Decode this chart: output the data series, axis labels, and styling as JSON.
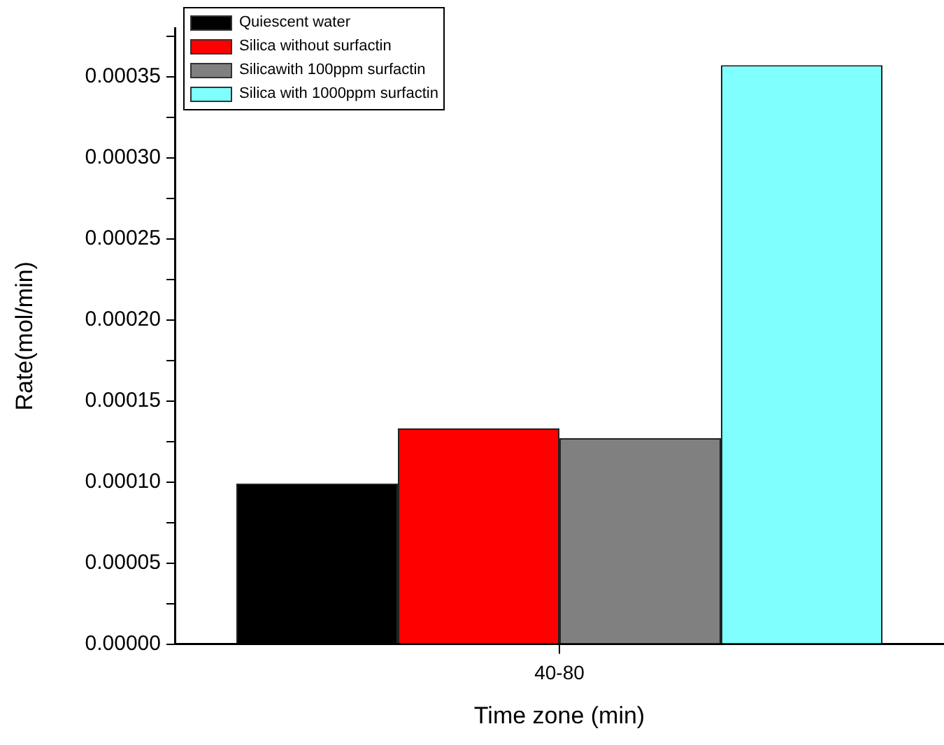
{
  "chart_data": {
    "type": "bar",
    "xlabel": "Time zone (min)",
    "ylabel": "Rate(mol/min)",
    "categories": [
      "40-80"
    ],
    "series": [
      {
        "name": "Quiescent water",
        "color": "#000000",
        "values": [
          9.9e-05
        ]
      },
      {
        "name": "Silica without surfactin",
        "color": "#ff0000",
        "values": [
          0.000133
        ]
      },
      {
        "name": "Silicawith 100ppm surfactin",
        "color": "#808080",
        "values": [
          0.000127
        ]
      },
      {
        "name": "Silica with 1000ppm surfactin",
        "color": "#80ffff",
        "values": [
          0.000357
        ]
      }
    ],
    "ylim": [
      0,
      0.00038
    ],
    "yticks": [
      {
        "value": 0,
        "label": "0.00000"
      },
      {
        "value": 2.5e-05,
        "label": null
      },
      {
        "value": 5e-05,
        "label": "0.00005"
      },
      {
        "value": 7.5e-05,
        "label": null
      },
      {
        "value": 0.0001,
        "label": "0.00010"
      },
      {
        "value": 0.000125,
        "label": null
      },
      {
        "value": 0.00015,
        "label": "0.00015"
      },
      {
        "value": 0.000175,
        "label": null
      },
      {
        "value": 0.0002,
        "label": "0.00020"
      },
      {
        "value": 0.000225,
        "label": null
      },
      {
        "value": 0.00025,
        "label": "0.00025"
      },
      {
        "value": 0.000275,
        "label": null
      },
      {
        "value": 0.0003,
        "label": "0.00030"
      },
      {
        "value": 0.000325,
        "label": null
      },
      {
        "value": 0.00035,
        "label": "0.00035"
      },
      {
        "value": 0.000375,
        "label": null
      }
    ],
    "grid": false,
    "legend": "top left"
  }
}
